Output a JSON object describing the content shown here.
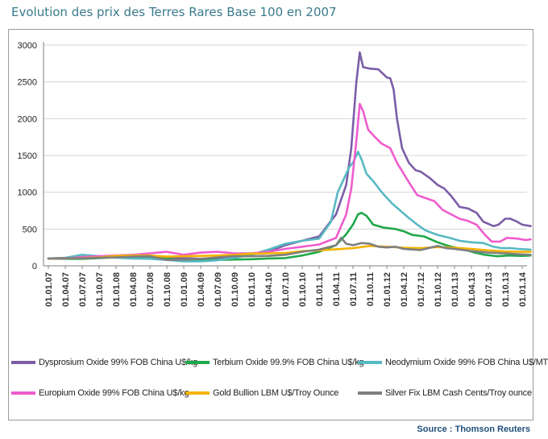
{
  "header": {
    "title": "Evolution des prix des Terres Rares Base 100 en 2007"
  },
  "source": "Source : Thomson Reuters",
  "chart_data": {
    "type": "line",
    "title": "Evolution des prix des Terres Rares Base 100 en 2007",
    "xlabel": "",
    "ylabel": "",
    "ylim": [
      0,
      3000
    ],
    "yticks": [
      "0",
      "500",
      "1000",
      "1500",
      "2000",
      "2500",
      "3000"
    ],
    "yticks_values": [
      0,
      500,
      1000,
      1500,
      2000,
      2500,
      3000
    ],
    "grid": "horizontal",
    "legend_position": "bottom",
    "categories": [
      "01.01.07",
      "01.04.07",
      "01.07.07",
      "01.10.07",
      "01.01.08",
      "01.04.08",
      "01.07.08",
      "01.10.08",
      "01.01.09",
      "01.04.09",
      "01.07.09",
      "01.10.09",
      "01.01.10",
      "01.04.10",
      "01.07.10",
      "01.10.10",
      "01.01.11",
      "01.04.11",
      "01.07.11",
      "01.10.11",
      "01.01.12",
      "01.04.12",
      "01.07.12",
      "01.10.12",
      "01.01.13",
      "01.04.13",
      "01.07.13",
      "01.10.13",
      "01.01.14"
    ],
    "series": [
      {
        "name": "Dysprosium Oxide 99% FOB China U$/kg",
        "color": "#7b5ea7",
        "points": [
          [
            0,
            100
          ],
          [
            1,
            105
          ],
          [
            2,
            110
          ],
          [
            3,
            115
          ],
          [
            4,
            125
          ],
          [
            5,
            130
          ],
          [
            6,
            135
          ],
          [
            7,
            120
          ],
          [
            8,
            105
          ],
          [
            9,
            95
          ],
          [
            10,
            105
          ],
          [
            11,
            130
          ],
          [
            12,
            160
          ],
          [
            13,
            190
          ],
          [
            14,
            280
          ],
          [
            15,
            340
          ],
          [
            16,
            400
          ],
          [
            17,
            700
          ],
          [
            17.6,
            1100
          ],
          [
            17.9,
            1600
          ],
          [
            18.2,
            2500
          ],
          [
            18.4,
            2900
          ],
          [
            18.5,
            2800
          ],
          [
            18.6,
            2700
          ],
          [
            19,
            2680
          ],
          [
            19.5,
            2670
          ],
          [
            20,
            2560
          ],
          [
            20.2,
            2550
          ],
          [
            20.4,
            2400
          ],
          [
            20.6,
            2000
          ],
          [
            20.9,
            1600
          ],
          [
            21.3,
            1400
          ],
          [
            21.7,
            1300
          ],
          [
            22,
            1280
          ],
          [
            22.5,
            1200
          ],
          [
            23,
            1100
          ],
          [
            23.4,
            1050
          ],
          [
            23.8,
            950
          ],
          [
            24.3,
            800
          ],
          [
            24.8,
            780
          ],
          [
            25.3,
            720
          ],
          [
            25.7,
            600
          ],
          [
            26.3,
            540
          ],
          [
            26.6,
            560
          ],
          [
            27,
            640
          ],
          [
            27.3,
            640
          ],
          [
            27.7,
            600
          ],
          [
            28,
            560
          ],
          [
            28.5,
            540
          ]
        ]
      },
      {
        "name": "Terbium Oxide 99.9% FOB China U$/kg",
        "color": "#1fa84a",
        "points": [
          [
            0,
            100
          ],
          [
            1,
            95
          ],
          [
            2,
            95
          ],
          [
            3,
            105
          ],
          [
            4,
            115
          ],
          [
            5,
            120
          ],
          [
            6,
            115
          ],
          [
            7,
            95
          ],
          [
            8,
            80
          ],
          [
            9,
            75
          ],
          [
            10,
            80
          ],
          [
            11,
            85
          ],
          [
            12,
            90
          ],
          [
            13,
            100
          ],
          [
            14,
            105
          ],
          [
            15,
            140
          ],
          [
            16,
            190
          ],
          [
            17,
            280
          ],
          [
            17.6,
            430
          ],
          [
            18,
            560
          ],
          [
            18.3,
            700
          ],
          [
            18.5,
            720
          ],
          [
            18.8,
            680
          ],
          [
            19.2,
            560
          ],
          [
            19.8,
            520
          ],
          [
            20.5,
            500
          ],
          [
            21,
            470
          ],
          [
            21.5,
            420
          ],
          [
            22.2,
            400
          ],
          [
            23,
            320
          ],
          [
            23.5,
            280
          ],
          [
            24,
            250
          ],
          [
            24.6,
            220
          ],
          [
            25.2,
            180
          ],
          [
            25.8,
            150
          ],
          [
            26.5,
            130
          ],
          [
            27.2,
            140
          ],
          [
            28,
            135
          ],
          [
            28.5,
            140
          ]
        ]
      },
      {
        "name": "Neodymium Oxide 99% FOB China U$/MT",
        "color": "#57b9c2",
        "points": [
          [
            0,
            100
          ],
          [
            1,
            110
          ],
          [
            2,
            150
          ],
          [
            3,
            130
          ],
          [
            4,
            110
          ],
          [
            5,
            100
          ],
          [
            6,
            95
          ],
          [
            7,
            80
          ],
          [
            8,
            60
          ],
          [
            9,
            60
          ],
          [
            10,
            75
          ],
          [
            11,
            110
          ],
          [
            12,
            150
          ],
          [
            13,
            220
          ],
          [
            14,
            300
          ],
          [
            15,
            340
          ],
          [
            16,
            370
          ],
          [
            16.7,
            600
          ],
          [
            17.1,
            1000
          ],
          [
            17.5,
            1200
          ],
          [
            17.8,
            1350
          ],
          [
            18,
            1400
          ],
          [
            18.3,
            1550
          ],
          [
            18.5,
            1450
          ],
          [
            18.8,
            1250
          ],
          [
            19.2,
            1150
          ],
          [
            19.7,
            1000
          ],
          [
            20.3,
            850
          ],
          [
            20.8,
            750
          ],
          [
            21.3,
            650
          ],
          [
            21.8,
            560
          ],
          [
            22.3,
            480
          ],
          [
            23,
            420
          ],
          [
            23.7,
            380
          ],
          [
            24.3,
            340
          ],
          [
            25,
            320
          ],
          [
            25.7,
            310
          ],
          [
            26.3,
            260
          ],
          [
            26.8,
            240
          ],
          [
            27.3,
            240
          ],
          [
            27.8,
            230
          ],
          [
            28.5,
            220
          ]
        ]
      },
      {
        "name": "Europium Oxide 99% FOB China U$/kg",
        "color": "#ee5ccd",
        "points": [
          [
            0,
            100
          ],
          [
            1,
            100
          ],
          [
            2,
            120
          ],
          [
            3,
            130
          ],
          [
            4,
            140
          ],
          [
            5,
            150
          ],
          [
            6,
            170
          ],
          [
            7,
            190
          ],
          [
            8,
            150
          ],
          [
            9,
            180
          ],
          [
            10,
            190
          ],
          [
            11,
            170
          ],
          [
            12,
            170
          ],
          [
            13,
            190
          ],
          [
            14,
            230
          ],
          [
            15,
            260
          ],
          [
            16,
            290
          ],
          [
            17,
            380
          ],
          [
            17.6,
            700
          ],
          [
            17.9,
            1050
          ],
          [
            18.2,
            1700
          ],
          [
            18.4,
            2200
          ],
          [
            18.6,
            2100
          ],
          [
            18.9,
            1850
          ],
          [
            19.3,
            1750
          ],
          [
            19.7,
            1660
          ],
          [
            20.2,
            1600
          ],
          [
            20.6,
            1400
          ],
          [
            21,
            1250
          ],
          [
            21.4,
            1100
          ],
          [
            21.8,
            960
          ],
          [
            22.3,
            920
          ],
          [
            22.8,
            880
          ],
          [
            23.3,
            760
          ],
          [
            23.8,
            700
          ],
          [
            24.3,
            640
          ],
          [
            24.8,
            610
          ],
          [
            25.3,
            560
          ],
          [
            25.8,
            420
          ],
          [
            26.2,
            330
          ],
          [
            26.7,
            330
          ],
          [
            27.1,
            380
          ],
          [
            27.7,
            370
          ],
          [
            28.2,
            350
          ],
          [
            28.5,
            360
          ]
        ]
      },
      {
        "name": "Gold Bullion LBM U$/Troy Ounce",
        "color": "#f5b400",
        "points": [
          [
            0,
            100
          ],
          [
            1,
            103
          ],
          [
            2,
            105
          ],
          [
            3,
            115
          ],
          [
            4,
            135
          ],
          [
            5,
            140
          ],
          [
            6,
            140
          ],
          [
            7,
            125
          ],
          [
            8,
            130
          ],
          [
            9,
            135
          ],
          [
            10,
            140
          ],
          [
            11,
            150
          ],
          [
            12,
            165
          ],
          [
            13,
            170
          ],
          [
            14,
            175
          ],
          [
            15,
            200
          ],
          [
            16,
            210
          ],
          [
            17,
            225
          ],
          [
            18,
            240
          ],
          [
            19,
            270
          ],
          [
            20,
            260
          ],
          [
            21,
            245
          ],
          [
            22,
            240
          ],
          [
            23,
            255
          ],
          [
            24,
            245
          ],
          [
            25,
            230
          ],
          [
            26,
            210
          ],
          [
            27,
            195
          ],
          [
            28,
            190
          ],
          [
            28.5,
            190
          ]
        ]
      },
      {
        "name": "Silver Fix LBM Cash Cents/Troy ounce",
        "color": "#7f7f7f",
        "points": [
          [
            0,
            100
          ],
          [
            1,
            105
          ],
          [
            2,
            102
          ],
          [
            3,
            108
          ],
          [
            4,
            115
          ],
          [
            5,
            125
          ],
          [
            6,
            130
          ],
          [
            7,
            80
          ],
          [
            8,
            85
          ],
          [
            9,
            95
          ],
          [
            10,
            115
          ],
          [
            11,
            130
          ],
          [
            12,
            130
          ],
          [
            13,
            135
          ],
          [
            14,
            150
          ],
          [
            15,
            190
          ],
          [
            16,
            220
          ],
          [
            17,
            280
          ],
          [
            17.3,
            380
          ],
          [
            17.6,
            300
          ],
          [
            18,
            280
          ],
          [
            18.5,
            310
          ],
          [
            19,
            300
          ],
          [
            19.5,
            260
          ],
          [
            20,
            250
          ],
          [
            20.5,
            260
          ],
          [
            21,
            230
          ],
          [
            22,
            215
          ],
          [
            23,
            270
          ],
          [
            23.5,
            240
          ],
          [
            24,
            230
          ],
          [
            25,
            200
          ],
          [
            26,
            180
          ],
          [
            27,
            170
          ],
          [
            28,
            155
          ],
          [
            28.5,
            150
          ]
        ]
      }
    ]
  }
}
